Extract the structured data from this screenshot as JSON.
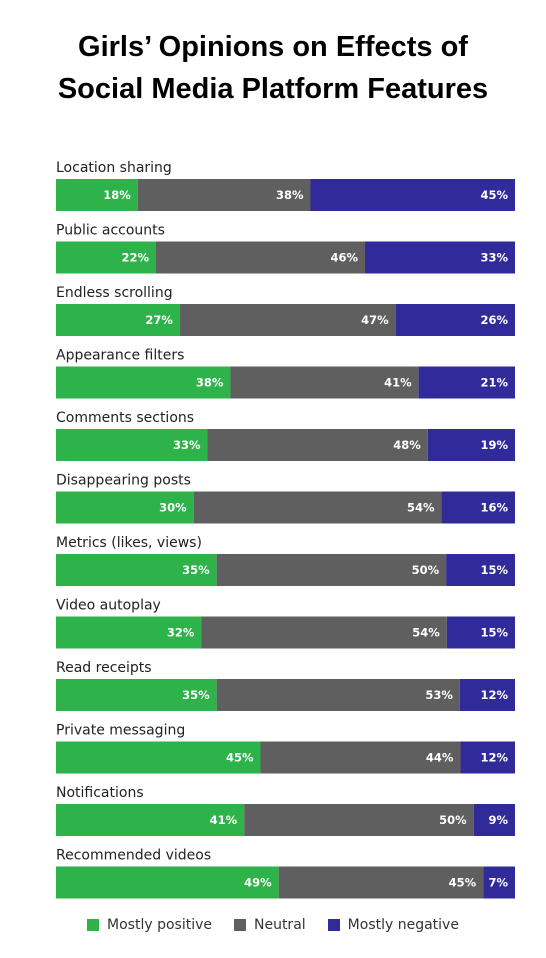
{
  "title_line1": "Girls’ Opinions on Effects of",
  "title_line2": "Social Media Platform Features",
  "colors": {
    "positive": "#2eb24a",
    "neutral": "#5f5f5f",
    "negative": "#312a9a"
  },
  "chart_data": {
    "type": "bar",
    "orientation": "horizontal",
    "stacked": true,
    "categories": [
      "Location sharing",
      "Public accounts",
      "Endless scrolling",
      "Appearance filters",
      "Comments sections",
      "Disappearing posts",
      "Metrics (likes, views)",
      "Video autoplay",
      "Read receipts",
      "Private messaging",
      "Notifications",
      "Recommended videos"
    ],
    "series": [
      {
        "name": "Mostly positive",
        "values": [
          18,
          22,
          27,
          38,
          33,
          30,
          35,
          32,
          35,
          45,
          41,
          49
        ]
      },
      {
        "name": "Neutral",
        "values": [
          38,
          46,
          47,
          41,
          48,
          54,
          50,
          54,
          53,
          44,
          50,
          45
        ]
      },
      {
        "name": "Mostly negative",
        "values": [
          45,
          33,
          26,
          21,
          19,
          16,
          15,
          15,
          12,
          12,
          9,
          7
        ]
      }
    ],
    "value_suffix": "%",
    "legend_position": "bottom",
    "grid": false
  }
}
